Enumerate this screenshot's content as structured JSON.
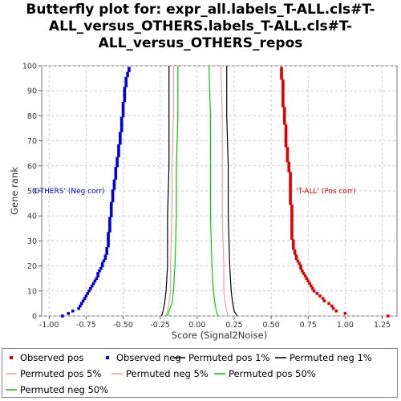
{
  "chart_data": {
    "type": "scatter",
    "title_lines": [
      "Butterfly plot for: expr_all.labels_T-ALL.cls#T-",
      "ALL_versus_OTHERS.labels_T-ALL.cls#T-",
      "ALL_versus_OTHERS_repos"
    ],
    "xlabel": "Score (Signal2Noise)",
    "ylabel": "Gene rank",
    "xlim": [
      -1.05,
      1.35
    ],
    "ylim": [
      0,
      100
    ],
    "x_ticks": [
      "-1.00",
      "-0.75",
      "-0.50",
      "-0.25",
      "0.00",
      "0.25",
      "0.50",
      "0.75",
      "1.00",
      "1.25"
    ],
    "y_ticks": [
      "0",
      "10",
      "20",
      "30",
      "40",
      "50",
      "60",
      "70",
      "80",
      "90",
      "100"
    ],
    "grid": true,
    "annotations": [
      {
        "text": "'OTHERS' (Neg corr)",
        "x": -0.87,
        "y": 50,
        "color": "#0000cc"
      },
      {
        "text": "'T-ALL' (Pos corr)",
        "x": 0.87,
        "y": 50,
        "color": "#e00000"
      }
    ],
    "series": [
      {
        "name": "Observed pos",
        "kind": "points",
        "color": "#e00000",
        "points": [
          [
            1.29,
            0
          ],
          [
            1.0,
            1
          ],
          [
            0.94,
            2
          ],
          [
            0.92,
            3
          ],
          [
            0.91,
            4
          ],
          [
            0.89,
            5
          ],
          [
            0.86,
            6
          ],
          [
            0.85,
            7
          ],
          [
            0.83,
            8
          ],
          [
            0.81,
            9
          ],
          [
            0.79,
            10
          ],
          [
            0.78,
            11
          ],
          [
            0.77,
            12
          ],
          [
            0.76,
            13
          ],
          [
            0.75,
            14
          ],
          [
            0.74,
            15
          ],
          [
            0.73,
            16
          ],
          [
            0.72,
            17
          ],
          [
            0.71,
            18
          ],
          [
            0.7,
            19
          ],
          [
            0.7,
            20
          ],
          [
            0.69,
            21
          ],
          [
            0.68,
            22
          ],
          [
            0.67,
            23
          ],
          [
            0.67,
            24
          ],
          [
            0.66,
            25
          ],
          [
            0.66,
            26
          ],
          [
            0.65,
            27
          ],
          [
            0.65,
            28
          ],
          [
            0.65,
            29
          ],
          [
            0.65,
            30
          ],
          [
            0.64,
            31
          ],
          [
            0.64,
            32
          ],
          [
            0.64,
            33
          ],
          [
            0.64,
            34
          ],
          [
            0.64,
            35
          ],
          [
            0.64,
            36
          ],
          [
            0.64,
            37
          ],
          [
            0.64,
            38
          ],
          [
            0.64,
            39
          ],
          [
            0.64,
            40
          ],
          [
            0.64,
            41
          ],
          [
            0.64,
            42
          ],
          [
            0.64,
            43
          ],
          [
            0.64,
            44
          ],
          [
            0.63,
            45
          ],
          [
            0.63,
            46
          ],
          [
            0.63,
            47
          ],
          [
            0.63,
            48
          ],
          [
            0.63,
            49
          ],
          [
            0.63,
            50
          ],
          [
            0.63,
            51
          ],
          [
            0.63,
            52
          ],
          [
            0.63,
            53
          ],
          [
            0.63,
            54
          ],
          [
            0.63,
            55
          ],
          [
            0.63,
            56
          ],
          [
            0.63,
            57
          ],
          [
            0.62,
            58
          ],
          [
            0.62,
            59
          ],
          [
            0.62,
            60
          ],
          [
            0.62,
            61
          ],
          [
            0.61,
            62
          ],
          [
            0.61,
            63
          ],
          [
            0.61,
            64
          ],
          [
            0.61,
            65
          ],
          [
            0.61,
            66
          ],
          [
            0.61,
            67
          ],
          [
            0.6,
            68
          ],
          [
            0.6,
            69
          ],
          [
            0.6,
            70
          ],
          [
            0.6,
            71
          ],
          [
            0.6,
            72
          ],
          [
            0.6,
            73
          ],
          [
            0.6,
            74
          ],
          [
            0.6,
            75
          ],
          [
            0.6,
            76
          ],
          [
            0.59,
            77
          ],
          [
            0.59,
            78
          ],
          [
            0.59,
            79
          ],
          [
            0.59,
            80
          ],
          [
            0.59,
            81
          ],
          [
            0.59,
            82
          ],
          [
            0.59,
            83
          ],
          [
            0.58,
            84
          ],
          [
            0.58,
            85
          ],
          [
            0.58,
            86
          ],
          [
            0.58,
            87
          ],
          [
            0.58,
            88
          ],
          [
            0.58,
            89
          ],
          [
            0.58,
            90
          ],
          [
            0.58,
            91
          ],
          [
            0.58,
            92
          ],
          [
            0.58,
            93
          ],
          [
            0.58,
            94
          ],
          [
            0.57,
            95
          ],
          [
            0.57,
            96
          ],
          [
            0.57,
            97
          ],
          [
            0.57,
            98
          ],
          [
            0.57,
            99
          ]
        ]
      },
      {
        "name": "Observed neg",
        "kind": "points",
        "color": "#0000e0",
        "points": [
          [
            -0.91,
            0
          ],
          [
            -0.87,
            1
          ],
          [
            -0.84,
            2
          ],
          [
            -0.8,
            3
          ],
          [
            -0.79,
            4
          ],
          [
            -0.78,
            5
          ],
          [
            -0.77,
            6
          ],
          [
            -0.76,
            7
          ],
          [
            -0.75,
            8
          ],
          [
            -0.74,
            9
          ],
          [
            -0.73,
            10
          ],
          [
            -0.72,
            11
          ],
          [
            -0.71,
            12
          ],
          [
            -0.7,
            13
          ],
          [
            -0.69,
            14
          ],
          [
            -0.68,
            15
          ],
          [
            -0.67,
            16
          ],
          [
            -0.67,
            17
          ],
          [
            -0.66,
            18
          ],
          [
            -0.65,
            19
          ],
          [
            -0.64,
            20
          ],
          [
            -0.64,
            21
          ],
          [
            -0.63,
            22
          ],
          [
            -0.62,
            23
          ],
          [
            -0.62,
            24
          ],
          [
            -0.61,
            25
          ],
          [
            -0.61,
            26
          ],
          [
            -0.61,
            27
          ],
          [
            -0.6,
            28
          ],
          [
            -0.6,
            29
          ],
          [
            -0.6,
            30
          ],
          [
            -0.6,
            31
          ],
          [
            -0.6,
            32
          ],
          [
            -0.6,
            33
          ],
          [
            -0.59,
            34
          ],
          [
            -0.59,
            35
          ],
          [
            -0.59,
            36
          ],
          [
            -0.59,
            37
          ],
          [
            -0.59,
            38
          ],
          [
            -0.59,
            39
          ],
          [
            -0.58,
            40
          ],
          [
            -0.58,
            41
          ],
          [
            -0.58,
            42
          ],
          [
            -0.58,
            43
          ],
          [
            -0.58,
            44
          ],
          [
            -0.58,
            45
          ],
          [
            -0.57,
            46
          ],
          [
            -0.57,
            47
          ],
          [
            -0.57,
            48
          ],
          [
            -0.57,
            49
          ],
          [
            -0.57,
            50
          ],
          [
            -0.56,
            51
          ],
          [
            -0.56,
            52
          ],
          [
            -0.56,
            53
          ],
          [
            -0.56,
            54
          ],
          [
            -0.55,
            55
          ],
          [
            -0.55,
            56
          ],
          [
            -0.55,
            57
          ],
          [
            -0.55,
            58
          ],
          [
            -0.55,
            59
          ],
          [
            -0.54,
            60
          ],
          [
            -0.54,
            61
          ],
          [
            -0.54,
            62
          ],
          [
            -0.54,
            63
          ],
          [
            -0.53,
            64
          ],
          [
            -0.53,
            65
          ],
          [
            -0.53,
            66
          ],
          [
            -0.53,
            67
          ],
          [
            -0.53,
            68
          ],
          [
            -0.52,
            69
          ],
          [
            -0.52,
            70
          ],
          [
            -0.52,
            71
          ],
          [
            -0.52,
            72
          ],
          [
            -0.52,
            73
          ],
          [
            -0.51,
            74
          ],
          [
            -0.51,
            75
          ],
          [
            -0.51,
            76
          ],
          [
            -0.51,
            77
          ],
          [
            -0.51,
            78
          ],
          [
            -0.51,
            79
          ],
          [
            -0.5,
            80
          ],
          [
            -0.5,
            81
          ],
          [
            -0.5,
            82
          ],
          [
            -0.5,
            83
          ],
          [
            -0.5,
            84
          ],
          [
            -0.5,
            85
          ],
          [
            -0.49,
            86
          ],
          [
            -0.49,
            87
          ],
          [
            -0.49,
            88
          ],
          [
            -0.49,
            89
          ],
          [
            -0.49,
            90
          ],
          [
            -0.49,
            91
          ],
          [
            -0.48,
            92
          ],
          [
            -0.48,
            93
          ],
          [
            -0.48,
            94
          ],
          [
            -0.48,
            95
          ],
          [
            -0.47,
            96
          ],
          [
            -0.47,
            97
          ],
          [
            -0.46,
            98
          ],
          [
            -0.46,
            99
          ]
        ]
      },
      {
        "name": "Permuted pos 1%",
        "kind": "line",
        "color": "#000000",
        "points": [
          [
            0.27,
            0
          ],
          [
            0.25,
            2
          ],
          [
            0.24,
            5
          ],
          [
            0.23,
            10
          ],
          [
            0.22,
            20
          ],
          [
            0.21,
            40
          ],
          [
            0.21,
            60
          ],
          [
            0.2,
            80
          ],
          [
            0.2,
            100
          ]
        ]
      },
      {
        "name": "Permuted neg 1%",
        "kind": "line",
        "color": "#000000",
        "points": [
          [
            -0.24,
            0
          ],
          [
            -0.23,
            2
          ],
          [
            -0.22,
            5
          ],
          [
            -0.21,
            10
          ],
          [
            -0.2,
            20
          ],
          [
            -0.2,
            40
          ],
          [
            -0.19,
            60
          ],
          [
            -0.19,
            80
          ],
          [
            -0.19,
            100
          ]
        ]
      },
      {
        "name": "Permuted pos 5%",
        "kind": "line",
        "color": "#f4a0a0",
        "points": [
          [
            0.21,
            0
          ],
          [
            0.2,
            2
          ],
          [
            0.19,
            5
          ],
          [
            0.18,
            10
          ],
          [
            0.18,
            20
          ],
          [
            0.17,
            40
          ],
          [
            0.17,
            60
          ],
          [
            0.17,
            80
          ],
          [
            0.16,
            100
          ]
        ]
      },
      {
        "name": "Permuted neg 5%",
        "kind": "line",
        "color": "#f4a0a0",
        "points": [
          [
            -0.21,
            0
          ],
          [
            -0.2,
            2
          ],
          [
            -0.19,
            5
          ],
          [
            -0.18,
            10
          ],
          [
            -0.18,
            20
          ],
          [
            -0.17,
            40
          ],
          [
            -0.17,
            60
          ],
          [
            -0.16,
            80
          ],
          [
            -0.16,
            100
          ]
        ]
      },
      {
        "name": "Permuted pos 50%",
        "kind": "line",
        "color": "#00cc00",
        "points": [
          [
            0.14,
            0
          ],
          [
            0.13,
            2
          ],
          [
            0.12,
            5
          ],
          [
            0.11,
            10
          ],
          [
            0.1,
            20
          ],
          [
            0.09,
            40
          ],
          [
            0.09,
            60
          ],
          [
            0.09,
            80
          ],
          [
            0.08,
            100
          ]
        ]
      },
      {
        "name": "Permuted neg 50%",
        "kind": "line",
        "color": "#00cc00",
        "points": [
          [
            -0.2,
            0
          ],
          [
            -0.19,
            2
          ],
          [
            -0.17,
            5
          ],
          [
            -0.16,
            10
          ],
          [
            -0.15,
            20
          ],
          [
            -0.14,
            40
          ],
          [
            -0.14,
            60
          ],
          [
            -0.13,
            80
          ],
          [
            -0.13,
            100
          ]
        ]
      }
    ],
    "legend": [
      {
        "label": "Observed pos",
        "kind": "point",
        "color": "#e00000"
      },
      {
        "label": "Observed neg",
        "kind": "point",
        "color": "#0000e0"
      },
      {
        "label": "Permuted pos 1%",
        "kind": "line",
        "color": "#000000"
      },
      {
        "label": "Permuted neg 1%",
        "kind": "line",
        "color": "#000000"
      },
      {
        "label": "Permuted pos 5%",
        "kind": "line",
        "color": "#f4a0a0"
      },
      {
        "label": "Permuted neg 5%",
        "kind": "line",
        "color": "#f4a0a0"
      },
      {
        "label": "Permuted pos 50%",
        "kind": "line",
        "color": "#00cc00"
      },
      {
        "label": "Permuted neg 50%",
        "kind": "line",
        "color": "#00cc00"
      }
    ]
  }
}
